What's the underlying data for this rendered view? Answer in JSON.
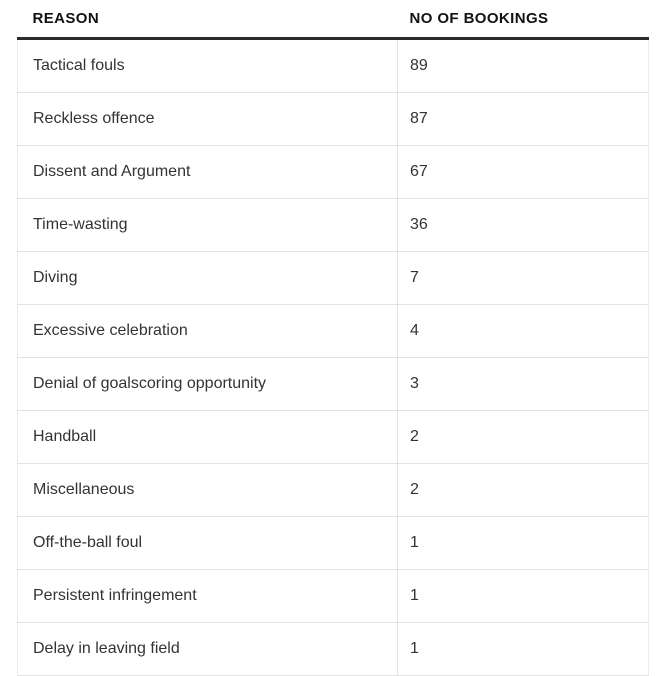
{
  "chart_data": {
    "type": "table",
    "columns": [
      "REASON",
      "NO OF BOOKINGS"
    ],
    "rows": [
      [
        "Tactical fouls",
        89
      ],
      [
        "Reckless offence",
        87
      ],
      [
        "Dissent and Argument",
        67
      ],
      [
        "Time-wasting",
        36
      ],
      [
        "Diving",
        7
      ],
      [
        "Excessive celebration",
        4
      ],
      [
        "Denial of goalscoring opportunity",
        3
      ],
      [
        "Handball",
        2
      ],
      [
        "Miscellaneous",
        2
      ],
      [
        "Off-the-ball foul",
        1
      ],
      [
        "Persistent infringement",
        1
      ],
      [
        "Delay in leaving field",
        1
      ]
    ]
  },
  "colors": {
    "header_text": "#121212",
    "body_text": "#333333",
    "rule": "#2b2b2b",
    "grid": "#e2e2e2",
    "table_edge": "#ececec",
    "background": "#ffffff"
  }
}
